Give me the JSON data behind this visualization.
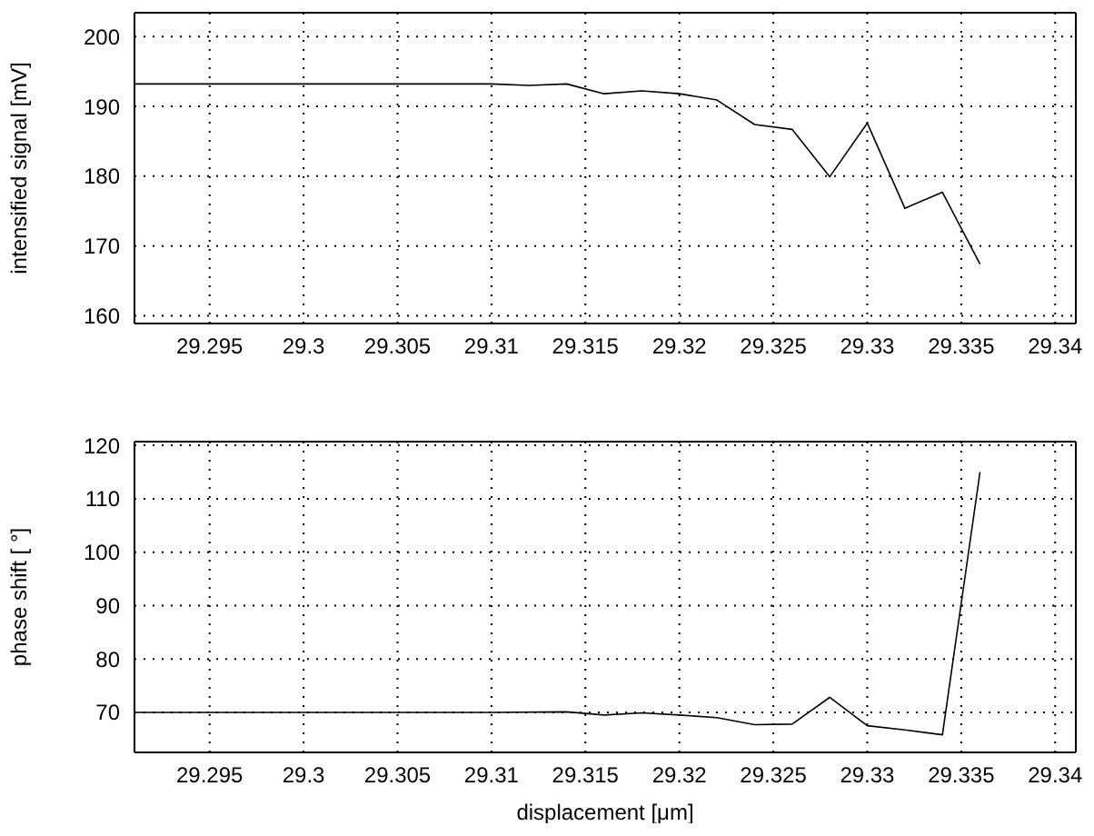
{
  "chart_data": [
    {
      "type": "line",
      "ylabel": "intensified signal [mV]",
      "xlim": [
        29.291,
        29.3411
      ],
      "xticks": [
        29.295,
        29.3,
        29.305,
        29.31,
        29.315,
        29.32,
        29.325,
        29.33,
        29.335,
        29.34
      ],
      "ylim": [
        158.9,
        203.4
      ],
      "yticks": [
        160,
        170,
        180,
        190,
        200
      ],
      "grid": true,
      "x": [
        29.291,
        29.31,
        29.312,
        29.314,
        29.316,
        29.318,
        29.32,
        29.322,
        29.324,
        29.326,
        29.328,
        29.33,
        29.332,
        29.334,
        29.336
      ],
      "series": [
        {
          "color": "#000000",
          "values": [
            193.2,
            193.2,
            193.0,
            193.2,
            191.8,
            192.2,
            191.8,
            190.9,
            187.4,
            186.7,
            179.9,
            187.6,
            175.4,
            177.7,
            167.4
          ]
        }
      ]
    },
    {
      "type": "line",
      "ylabel": "phase shift [ °]",
      "xlabel": "displacement  [μm]",
      "xlim": [
        29.291,
        29.3411
      ],
      "xticks": [
        29.295,
        29.3,
        29.305,
        29.31,
        29.315,
        29.32,
        29.325,
        29.33,
        29.335,
        29.34
      ],
      "ylim": [
        62.5,
        120.7
      ],
      "yticks": [
        70,
        80,
        90,
        100,
        110,
        120
      ],
      "grid": true,
      "x": [
        29.291,
        29.31,
        29.314,
        29.316,
        29.318,
        29.32,
        29.322,
        29.324,
        29.326,
        29.328,
        29.33,
        29.332,
        29.334,
        29.336
      ],
      "series": [
        {
          "color": "#000000",
          "values": [
            70.0,
            70.0,
            70.1,
            69.5,
            69.9,
            69.5,
            69.0,
            67.7,
            67.8,
            72.8,
            67.5,
            66.7,
            65.8,
            115.0
          ]
        }
      ]
    }
  ]
}
